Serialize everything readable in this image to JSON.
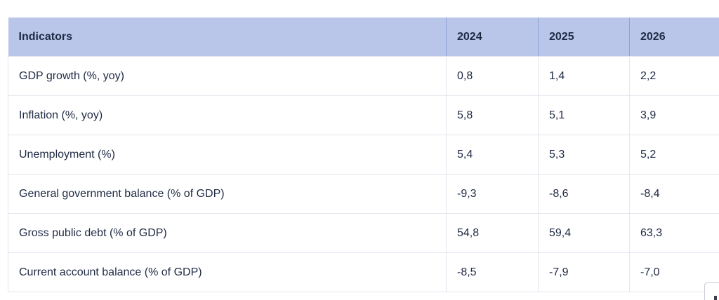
{
  "table": {
    "headers": [
      "Indicators",
      "2024",
      "2025",
      "2026"
    ],
    "rows": [
      {
        "indicator": "GDP growth (%, yoy)",
        "values": [
          "0,8",
          "1,4",
          "2,2"
        ]
      },
      {
        "indicator": "Inflation (%, yoy)",
        "values": [
          "5,8",
          "5,1",
          "3,9"
        ]
      },
      {
        "indicator": "Unemployment (%)",
        "values": [
          "5,4",
          "5,3",
          "5,2"
        ]
      },
      {
        "indicator": "General government balance (% of GDP)",
        "values": [
          "-9,3",
          "-8,6",
          "-8,4"
        ]
      },
      {
        "indicator": "Gross public debt (% of GDP)",
        "values": [
          "54,8",
          "59,4",
          "63,3"
        ]
      },
      {
        "indicator": "Current account balance (% of GDP)",
        "values": [
          "-8,5",
          "-7,9",
          "-7,0"
        ]
      }
    ]
  },
  "colors": {
    "header_background": "#b9c6ea",
    "text": "#1f2a44",
    "grid": "#e3e6ee"
  }
}
